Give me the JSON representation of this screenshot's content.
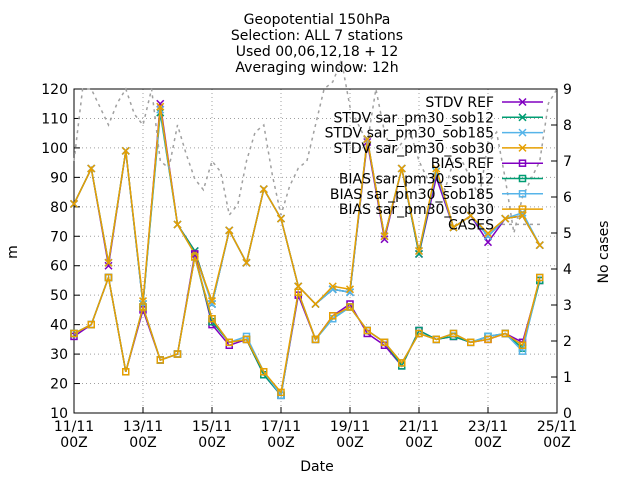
{
  "chart_data": {
    "type": "line",
    "title_lines": [
      "Geopotential 150hPa",
      "Selection: ALL      7 stations",
      "Used 00,06,12,18 + 12",
      "Averaging window: 12h"
    ],
    "xlabel": "Date",
    "ylabel": "m",
    "y2label": "No cases",
    "x_tick_labels": [
      [
        "11/11",
        "00Z"
      ],
      [
        "13/11",
        "00Z"
      ],
      [
        "15/11",
        "00Z"
      ],
      [
        "17/11",
        "00Z"
      ],
      [
        "19/11",
        "00Z"
      ],
      [
        "21/11",
        "00Z"
      ],
      [
        "23/11",
        "00Z"
      ],
      [
        "25/11",
        "00Z"
      ]
    ],
    "x_tick_days": [
      0,
      2,
      4,
      6,
      8,
      10,
      12,
      14
    ],
    "xlim": [
      0,
      14
    ],
    "ylim": [
      10,
      120
    ],
    "y_ticks": [
      10,
      20,
      30,
      40,
      50,
      60,
      70,
      80,
      90,
      100,
      110,
      120
    ],
    "y2lim": [
      0,
      9
    ],
    "y2_ticks": [
      0,
      1,
      2,
      3,
      4,
      5,
      6,
      7,
      8,
      9
    ],
    "grid": true,
    "legend_position": "top-right",
    "x": [
      0,
      0.5,
      1,
      1.5,
      2,
      2.5,
      3,
      3.5,
      4,
      4.5,
      5,
      5.5,
      6,
      6.5,
      7,
      7.5,
      8,
      8.5,
      9,
      9.5,
      10,
      10.5,
      11,
      11.5,
      12,
      12.5,
      13,
      13.5,
      14
    ],
    "series": [
      {
        "name": "STDV REF",
        "color": "#8000c0",
        "marker": "x",
        "values": [
          81,
          93,
          60,
          99,
          47,
          115,
          74,
          65,
          47,
          72,
          61,
          86,
          76,
          53,
          47,
          52,
          51,
          102,
          69,
          93,
          64,
          90,
          73,
          77,
          68,
          76,
          77,
          67,
          null
        ]
      },
      {
        "name": "STDV sar_pm30_sob12",
        "color": "#009e73",
        "marker": "x",
        "values": [
          81,
          93,
          61,
          99,
          47,
          112,
          74,
          65,
          47,
          72,
          61,
          86,
          76,
          53,
          47,
          52,
          51,
          103,
          70,
          93,
          64,
          92,
          73,
          77,
          70,
          76,
          77,
          67,
          null
        ]
      },
      {
        "name": "STDV sar_pm30_sob185",
        "color": "#56b4e9",
        "marker": "x",
        "values": [
          81,
          93,
          61,
          99,
          47,
          113,
          74,
          64,
          47,
          72,
          61,
          86,
          76,
          53,
          47,
          52,
          51,
          103,
          70,
          93,
          65,
          92,
          73,
          77,
          70,
          76,
          78,
          67,
          null
        ]
      },
      {
        "name": "STDV sar_pm30_sob30",
        "color": "#e69f00",
        "marker": "x",
        "values": [
          81,
          93,
          61,
          99,
          48,
          114,
          74,
          64,
          48,
          72,
          61,
          86,
          76,
          53,
          47,
          53,
          52,
          103,
          70,
          93,
          65,
          93,
          73,
          77,
          71,
          76,
          77,
          67,
          null
        ]
      },
      {
        "name": "BIAS REF",
        "color": "#8000c0",
        "marker": "square",
        "values": [
          36,
          40,
          56,
          24,
          45,
          28,
          30,
          64,
          40,
          33,
          35,
          23,
          16,
          50,
          35,
          43,
          47,
          37,
          33,
          26,
          38,
          35,
          36,
          34,
          35,
          37,
          34,
          55,
          null
        ]
      },
      {
        "name": "BIAS sar_pm30_sob12",
        "color": "#009e73",
        "marker": "square",
        "values": [
          37,
          40,
          56,
          24,
          46,
          28,
          30,
          63,
          41,
          34,
          35,
          23,
          16,
          51,
          35,
          42,
          46,
          38,
          34,
          26,
          38,
          35,
          36,
          34,
          36,
          37,
          32,
          55,
          null
        ]
      },
      {
        "name": "BIAS sar_pm30_sob185",
        "color": "#56b4e9",
        "marker": "square",
        "values": [
          37,
          40,
          56,
          24,
          46,
          28,
          30,
          63,
          42,
          34,
          36,
          24,
          16,
          51,
          35,
          42,
          46,
          38,
          34,
          27,
          37,
          35,
          37,
          34,
          36,
          37,
          31,
          56,
          null
        ]
      },
      {
        "name": "BIAS sar_pm30_sob30",
        "color": "#e69f00",
        "marker": "square",
        "values": [
          37,
          40,
          56,
          24,
          46,
          28,
          30,
          63,
          42,
          34,
          35,
          24,
          17,
          51,
          35,
          43,
          46,
          38,
          34,
          27,
          37,
          35,
          37,
          34,
          35,
          37,
          33,
          56,
          null
        ]
      },
      {
        "name": "CASES",
        "color": "#a0a0a0",
        "marker": "none",
        "axis": "y2",
        "x": [
          0,
          0.25,
          0.5,
          0.75,
          1,
          1.25,
          1.5,
          1.75,
          2,
          2.25,
          2.5,
          2.75,
          3,
          3.25,
          3.5,
          3.75,
          4,
          4.25,
          4.5,
          4.75,
          5,
          5.25,
          5.5,
          5.75,
          6,
          6.25,
          6.5,
          6.75,
          7,
          7.25,
          7.5,
          7.75,
          8,
          8.25,
          8.5,
          8.75,
          9,
          9.25,
          9.5,
          9.75,
          10,
          10.25,
          10.5,
          10.75,
          11,
          11.25,
          11.5,
          11.75,
          12,
          12.25,
          12.5,
          12.75,
          13,
          13.25,
          13.5,
          13.75,
          14
        ],
        "values": [
          7,
          9,
          9,
          8.5,
          8,
          8.6,
          9,
          8.3,
          8,
          9,
          7,
          6.8,
          8,
          7.2,
          6.5,
          6.2,
          7,
          6.7,
          5.5,
          5.8,
          7,
          7.8,
          8,
          6.6,
          5.5,
          6.3,
          6.8,
          7,
          8,
          9,
          9.2,
          9.8,
          8.5,
          8,
          7.5,
          9,
          7.8,
          7.2,
          7.5,
          7.8,
          7,
          6.5,
          6.6,
          6.2,
          7,
          7,
          6.5,
          6,
          7.5,
          7.8,
          6.5,
          5,
          6,
          6.5,
          7,
          8.6,
          9
        ]
      }
    ]
  }
}
